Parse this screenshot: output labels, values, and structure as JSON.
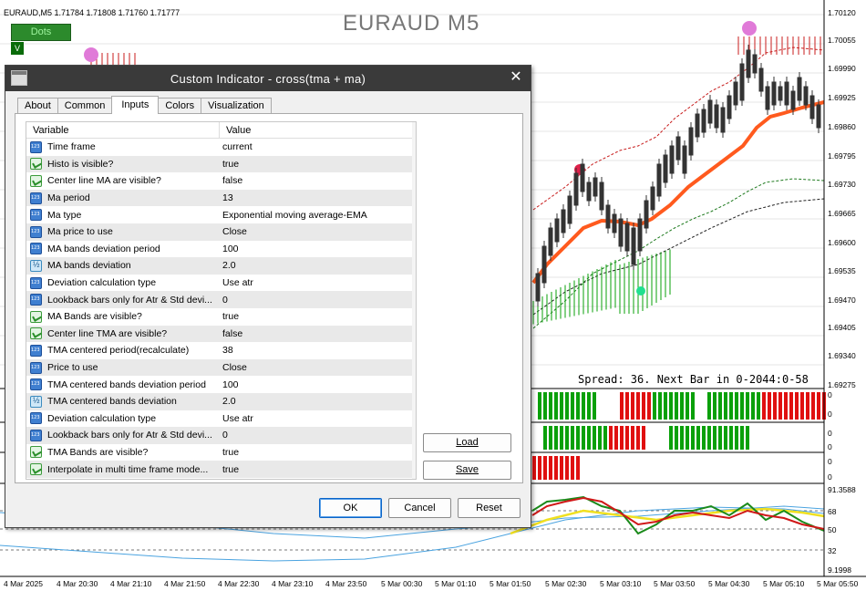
{
  "chart": {
    "symbol_header": "EURAUD,M5  1.71784 1.71808 1.71760 1.71777",
    "watermark": "EURAUD M5",
    "dots_button": "Dots",
    "v_button": "V",
    "spread_text": "Spread: 36. Next Bar in 0-2044:0-58",
    "price_axis": [
      "1.70120",
      "1.70055",
      "1.69990",
      "1.69925",
      "1.69860",
      "1.69795",
      "1.69730",
      "1.69665",
      "1.69600",
      "1.69535",
      "1.69470",
      "1.69405",
      "1.69340",
      "1.69275"
    ],
    "subwindow_zero_labels": [
      "0",
      "0",
      "0",
      "0",
      "0",
      "0"
    ],
    "oscillator_axis": [
      "91.3588",
      "68",
      "50",
      "32",
      "9.1998"
    ],
    "time_axis": [
      "4 Mar 2025",
      "4 Mar 20:30",
      "4 Mar 21:10",
      "4 Mar 21:50",
      "4 Mar 22:30",
      "4 Mar 23:10",
      "4 Mar 23:50",
      "5 Mar 00:30",
      "5 Mar 01:10",
      "5 Mar 01:50",
      "5 Mar 02:30",
      "5 Mar 03:10",
      "5 Mar 03:50",
      "5 Mar 04:30",
      "5 Mar 05:10",
      "5 Mar 05:50"
    ],
    "colors": {
      "candle": "#333333",
      "ma_line": "#ff5a1e",
      "upper_band": "#c81e1e",
      "lower_band": "#1e7a1e",
      "histo_up": "#0aa00a",
      "histo_down": "#e01010",
      "dot_pink": "#e07ad8",
      "dot_red": "#e0204a",
      "dot_green": "#20e090"
    }
  },
  "dialog": {
    "title": "Custom Indicator - cross(tma + ma)",
    "tabs": [
      "About",
      "Common",
      "Inputs",
      "Colors",
      "Visualization"
    ],
    "active_tab": "Inputs",
    "columns": {
      "variable": "Variable",
      "value": "Value"
    },
    "rows": [
      {
        "icon": "num",
        "name": "Time frame",
        "value": "current"
      },
      {
        "icon": "bool",
        "name": "Histo is visible?",
        "value": "true"
      },
      {
        "icon": "bool",
        "name": "Center line MA are visible?",
        "value": "false"
      },
      {
        "icon": "num",
        "name": "Ma period",
        "value": "13"
      },
      {
        "icon": "num",
        "name": "Ma type",
        "value": "Exponential moving average-EMA"
      },
      {
        "icon": "num",
        "name": "Ma price to use",
        "value": "Close"
      },
      {
        "icon": "num",
        "name": "MA  bands deviation period",
        "value": "100"
      },
      {
        "icon": "dbl",
        "name": "MA bands deviation",
        "value": "2.0"
      },
      {
        "icon": "num",
        "name": "Deviation calculation type",
        "value": "Use atr"
      },
      {
        "icon": "num",
        "name": "Lookback bars only for Atr & Std devi...",
        "value": "0"
      },
      {
        "icon": "bool",
        "name": "MA Bands are visible?",
        "value": "true"
      },
      {
        "icon": "bool",
        "name": "Center line TMA are visible?",
        "value": "false"
      },
      {
        "icon": "num",
        "name": "TMA centered period(recalculate)",
        "value": "38"
      },
      {
        "icon": "num",
        "name": "Price to use",
        "value": "Close"
      },
      {
        "icon": "num",
        "name": "TMA centered bands deviation period",
        "value": "100"
      },
      {
        "icon": "dbl",
        "name": "TMA centered bands deviation",
        "value": "2.0"
      },
      {
        "icon": "num",
        "name": "Deviation calculation type",
        "value": "Use atr"
      },
      {
        "icon": "num",
        "name": "Lookback bars only for Atr & Std devi...",
        "value": "0"
      },
      {
        "icon": "bool",
        "name": "TMA Bands are visible?",
        "value": "true"
      },
      {
        "icon": "bool",
        "name": "Interpolate in multi time frame mode...",
        "value": "true"
      }
    ],
    "load_button": "Load",
    "save_button": "Save",
    "ok_button": "OK",
    "cancel_button": "Cancel",
    "reset_button": "Reset"
  }
}
